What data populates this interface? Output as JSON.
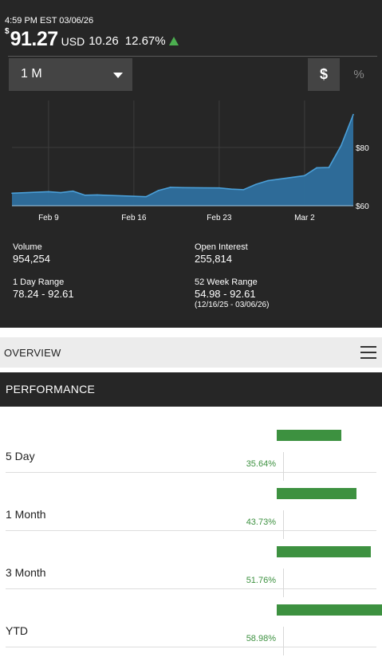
{
  "quote": {
    "timestamp": "4:59 PM EST 03/06/26",
    "currency_symbol": "$",
    "price": "91.27",
    "currency": "USD",
    "change": "10.26",
    "change_pct": "12.67%",
    "direction": "up"
  },
  "controls": {
    "range_label": "1 M",
    "dollar_label": "$",
    "percent_label": "%"
  },
  "chart_data": {
    "type": "area",
    "x": [
      "Feb 6",
      "Feb 9",
      "Feb 10",
      "Feb 11",
      "Feb 12",
      "Feb 13",
      "Feb 17",
      "Feb 18",
      "Feb 19",
      "Feb 20",
      "Feb 23",
      "Feb 24",
      "Feb 25",
      "Feb 26",
      "Feb 27",
      "Mar 2",
      "Mar 3",
      "Mar 4",
      "Mar 5",
      "Mar 6"
    ],
    "y": [
      64.3,
      64.8,
      64.5,
      65.0,
      63.6,
      63.7,
      63.1,
      65.2,
      66.3,
      66.2,
      66.1,
      65.7,
      65.5,
      67.3,
      68.6,
      70.3,
      73.0,
      73.1,
      80.6,
      91.27
    ],
    "x_tick_labels": [
      "Feb 9",
      "Feb 16",
      "Feb 23",
      "Mar 2"
    ],
    "y_tick_labels": [
      "$80",
      "$60"
    ],
    "ylim": [
      60,
      95
    ],
    "grid": true,
    "line_color": "#4a9fd8",
    "fill_color": "#2e6f9e"
  },
  "stats": {
    "volume_label": "Volume",
    "volume": "954,254",
    "open_interest_label": "Open Interest",
    "open_interest": "255,814",
    "day_range_label": "1 Day Range",
    "day_range": "78.24 - 92.61",
    "week52_label": "52 Week Range",
    "week52_range": "54.98 - 92.61",
    "week52_dates": "(12/16/25 - 03/06/26)"
  },
  "overview": {
    "label": "OVERVIEW"
  },
  "performance": {
    "title": "PERFORMANCE",
    "rows": [
      {
        "label": "5 Day",
        "value": "35.64%",
        "pct": 35.64
      },
      {
        "label": "1 Month",
        "value": "43.73%",
        "pct": 43.73
      },
      {
        "label": "3 Month",
        "value": "51.76%",
        "pct": 51.76
      },
      {
        "label": "YTD",
        "value": "58.98%",
        "pct": 58.98
      }
    ],
    "bar_color": "#3d9140"
  }
}
